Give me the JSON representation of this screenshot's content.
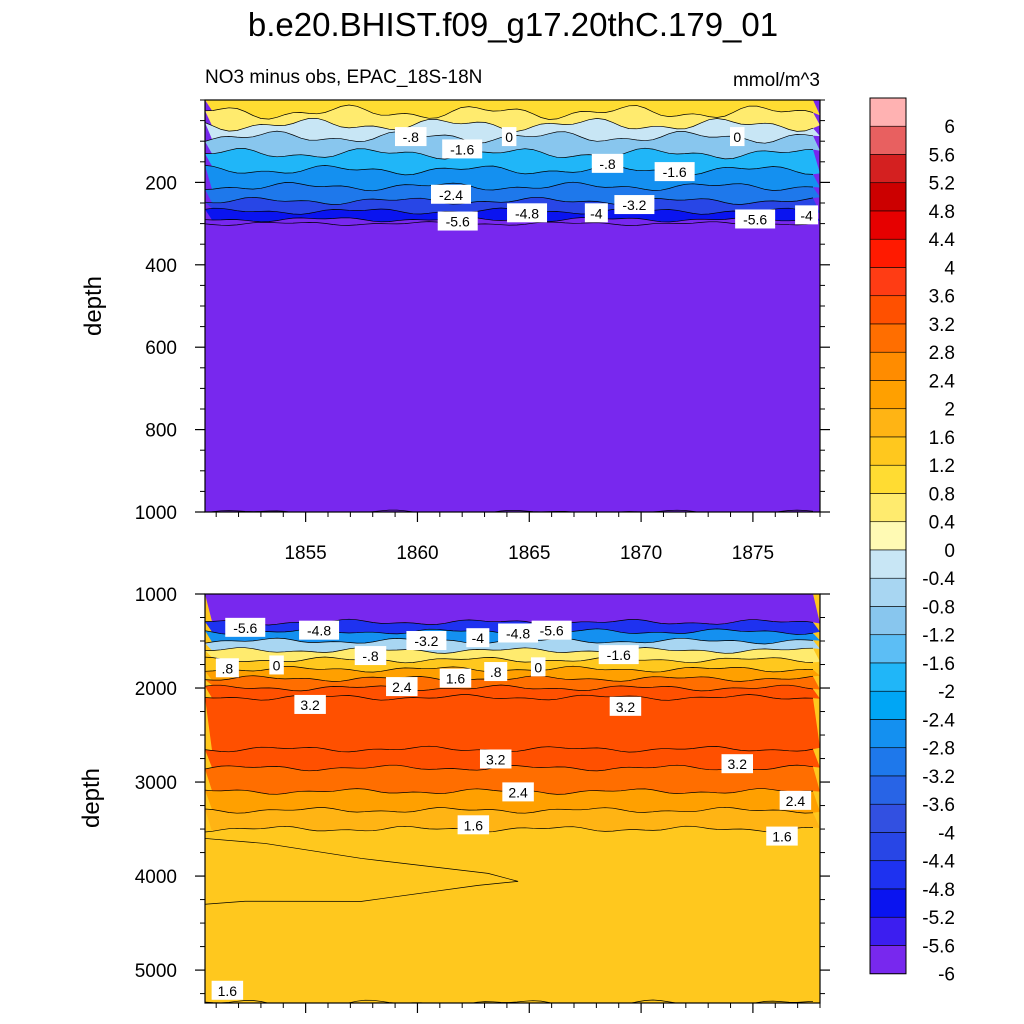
{
  "title": "b.e20.BHIST.f09_g17.20thC.179_01",
  "subtitle_left": "NO3 minus obs, EPAC_18S-18N",
  "subtitle_right": "mmol/m^3",
  "colors": {
    "background": "#ffffff",
    "axis": "#000000",
    "contour_line": "#000000"
  },
  "chart_data": {
    "type": "heatmap",
    "title": "b.e20.BHIST.f09_g17.20thC.179_01",
    "subtitle": "NO3 minus obs, EPAC_18S-18N",
    "units": "mmol/m^3",
    "xlim": [
      1850.5,
      1878.0
    ],
    "x_ticks": [
      1855,
      1860,
      1865,
      1870,
      1875
    ],
    "x_tick_labels": [
      "1855",
      "1860",
      "1865",
      "1870",
      "1875"
    ],
    "colorbar": {
      "labels": [
        "6",
        "5.6",
        "5.2",
        "4.8",
        "4.4",
        "4",
        "3.6",
        "3.2",
        "2.8",
        "2.4",
        "2",
        "1.6",
        "1.2",
        "0.8",
        "0.4",
        "0",
        "-0.4",
        "-0.8",
        "-1.2",
        "-1.6",
        "-2",
        "-2.4",
        "-2.8",
        "-3.2",
        "-3.6",
        "-4",
        "-4.4",
        "-4.8",
        "-5.2",
        "-5.6",
        "-6"
      ],
      "colors": [
        "#FFB2B2",
        "#E86060",
        "#D42020",
        "#CC0000",
        "#E60000",
        "#FF1A00",
        "#FF3C14",
        "#FF5000",
        "#FF6E00",
        "#FF8C00",
        "#FFA000",
        "#FFB414",
        "#FFC81E",
        "#FFDC32",
        "#FFEB6E",
        "#FFFAB4",
        "#C8E6F5",
        "#A8D6F2",
        "#88C6EE",
        "#5CBEF5",
        "#20B6F8",
        "#00A6F5",
        "#1490F0",
        "#1E78EB",
        "#2864E6",
        "#3250E1",
        "#2846E6",
        "#1E32F0",
        "#0A14F0",
        "#3C1EF0",
        "#7828EE"
      ]
    },
    "panels": [
      {
        "name": "upper",
        "ylabel": "depth",
        "ylim": [
          0,
          1000
        ],
        "y_ticks": [
          200,
          400,
          600,
          800,
          1000
        ],
        "y_tick_labels": [
          "200",
          "400",
          "600",
          "800",
          "1000"
        ],
        "layers": [
          {
            "depth": 30,
            "value": 0.8
          },
          {
            "depth": 60,
            "value": 0.2
          },
          {
            "depth": 90,
            "value": -0.6
          },
          {
            "depth": 130,
            "value": -1.4
          },
          {
            "depth": 170,
            "value": -1.9
          },
          {
            "depth": 210,
            "value": -2.6
          },
          {
            "depth": 245,
            "value": -3.3
          },
          {
            "depth": 270,
            "value": -4.3
          },
          {
            "depth": 290,
            "value": -5.3
          },
          {
            "depth": 300,
            "value": -6.0
          },
          {
            "depth": 1000,
            "value": -6.0
          }
        ],
        "contour_labels": [
          {
            "text": "-.8",
            "x": 1859.7,
            "depth": 90
          },
          {
            "text": "-1.6",
            "x": 1862.0,
            "depth": 120
          },
          {
            "text": "0",
            "x": 1864.1,
            "depth": 90
          },
          {
            "text": "-.8",
            "x": 1868.5,
            "depth": 155
          },
          {
            "text": "-1.6",
            "x": 1871.5,
            "depth": 175
          },
          {
            "text": "0",
            "x": 1874.3,
            "depth": 90
          },
          {
            "text": "-2.4",
            "x": 1861.5,
            "depth": 230
          },
          {
            "text": "-3.2",
            "x": 1869.7,
            "depth": 255
          },
          {
            "text": "-4.8",
            "x": 1864.9,
            "depth": 275
          },
          {
            "text": "-4",
            "x": 1868.0,
            "depth": 275
          },
          {
            "text": "-5.6",
            "x": 1861.8,
            "depth": 295
          },
          {
            "text": "-5.6",
            "x": 1875.1,
            "depth": 290
          },
          {
            "text": "-4",
            "x": 1877.4,
            "depth": 280
          }
        ]
      },
      {
        "name": "lower",
        "ylabel": "depth",
        "ylim": [
          1000,
          5350
        ],
        "y_ticks": [
          1000,
          2000,
          3000,
          4000,
          5000
        ],
        "y_tick_labels": [
          "1000",
          "2000",
          "3000",
          "4000",
          "5000"
        ],
        "layers": [
          {
            "depth": 1300,
            "value": -6.0
          },
          {
            "depth": 1400,
            "value": -5.0
          },
          {
            "depth": 1500,
            "value": -3.0
          },
          {
            "depth": 1600,
            "value": -1.0
          },
          {
            "depth": 1700,
            "value": 0.4
          },
          {
            "depth": 1800,
            "value": 1.4
          },
          {
            "depth": 1900,
            "value": 2.0
          },
          {
            "depth": 2000,
            "value": 2.6
          },
          {
            "depth": 2100,
            "value": 3.0
          },
          {
            "depth": 2650,
            "value": 3.4
          },
          {
            "depth": 2850,
            "value": 3.0
          },
          {
            "depth": 3100,
            "value": 2.6
          },
          {
            "depth": 3300,
            "value": 2.0
          },
          {
            "depth": 3500,
            "value": 1.6
          },
          {
            "depth": 5350,
            "value": 1.4
          }
        ],
        "anomaly_region": {
          "value": 1.0,
          "x_end": 1864.5,
          "depth_range": [
            3600,
            4300
          ]
        },
        "contour_labels": [
          {
            "text": "-5.6",
            "x": 1852.3,
            "depth": 1360
          },
          {
            "text": "-4.8",
            "x": 1855.6,
            "depth": 1390
          },
          {
            "text": "-3.2",
            "x": 1860.4,
            "depth": 1500
          },
          {
            "text": "-4",
            "x": 1862.7,
            "depth": 1470
          },
          {
            "text": "-4.8",
            "x": 1864.5,
            "depth": 1420
          },
          {
            "text": "-5.6",
            "x": 1866.0,
            "depth": 1390
          },
          {
            "text": "-.8",
            "x": 1857.9,
            "depth": 1660
          },
          {
            "text": "-1.6",
            "x": 1869.0,
            "depth": 1650
          },
          {
            "text": ".8",
            "x": 1851.5,
            "depth": 1790
          },
          {
            "text": "0",
            "x": 1853.7,
            "depth": 1760
          },
          {
            "text": ".8",
            "x": 1863.5,
            "depth": 1830
          },
          {
            "text": "0",
            "x": 1865.4,
            "depth": 1780
          },
          {
            "text": "1.6",
            "x": 1861.7,
            "depth": 1900
          },
          {
            "text": "2.4",
            "x": 1859.3,
            "depth": 1990
          },
          {
            "text": "3.2",
            "x": 1855.2,
            "depth": 2180
          },
          {
            "text": "3.2",
            "x": 1869.3,
            "depth": 2200
          },
          {
            "text": "3.2",
            "x": 1863.5,
            "depth": 2760
          },
          {
            "text": "3.2",
            "x": 1874.3,
            "depth": 2810
          },
          {
            "text": "2.4",
            "x": 1864.5,
            "depth": 3110
          },
          {
            "text": "2.4",
            "x": 1876.9,
            "depth": 3200
          },
          {
            "text": "1.6",
            "x": 1862.5,
            "depth": 3460
          },
          {
            "text": "1.6",
            "x": 1876.3,
            "depth": 3580
          },
          {
            "text": "1.6",
            "x": 1851.5,
            "depth": 5220
          }
        ]
      }
    ]
  }
}
